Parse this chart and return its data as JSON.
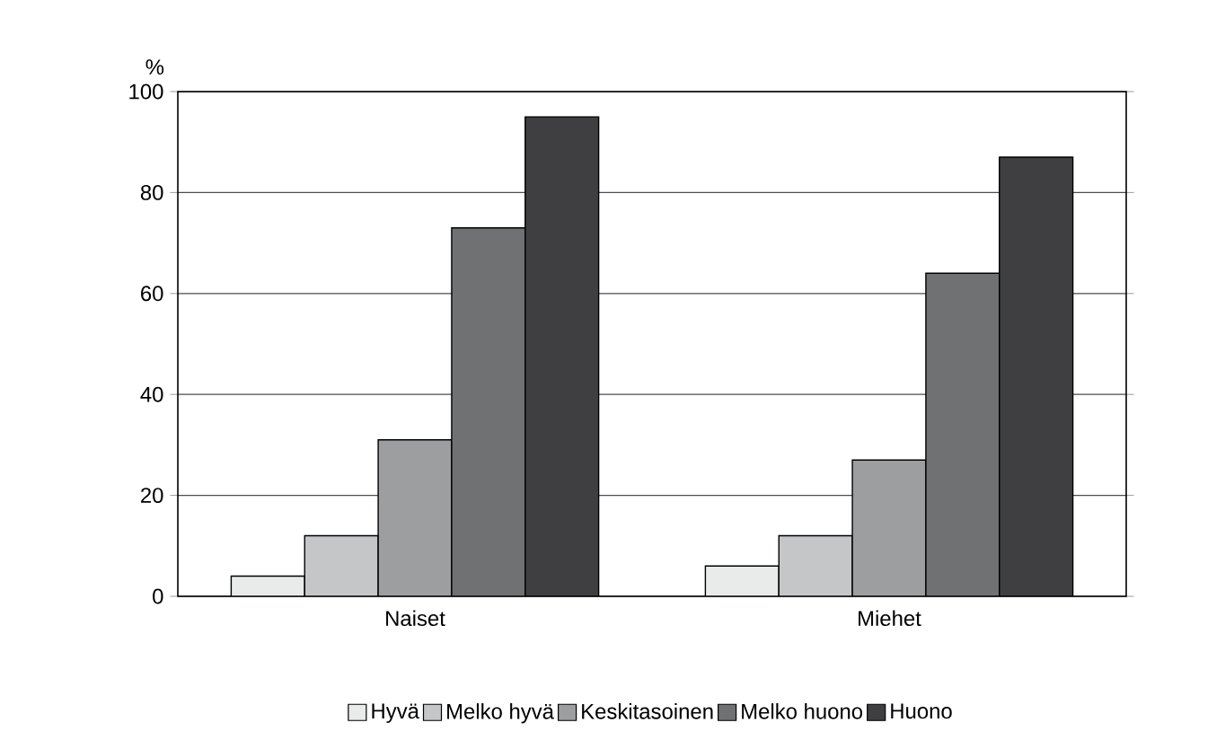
{
  "chart_data": {
    "type": "bar",
    "ylabel": "%",
    "categories": [
      "Naiset",
      "Miehet"
    ],
    "series": [
      {
        "name": "Hyvä",
        "color": "#e9eaea",
        "values": [
          4,
          6
        ]
      },
      {
        "name": "Melko hyvä",
        "color": "#c5c6c8",
        "values": [
          12,
          12
        ]
      },
      {
        "name": "Keskitasoinen",
        "color": "#9d9ea0",
        "values": [
          31,
          27
        ]
      },
      {
        "name": "Melko huono",
        "color": "#707173",
        "values": [
          73,
          64
        ]
      },
      {
        "name": "Huono",
        "color": "#3f3f41",
        "values": [
          95,
          87
        ]
      }
    ],
    "ylim": [
      0,
      100
    ],
    "yticks": [
      0,
      20,
      40,
      60,
      80,
      100
    ],
    "grid": "y",
    "legend": "bottom"
  }
}
